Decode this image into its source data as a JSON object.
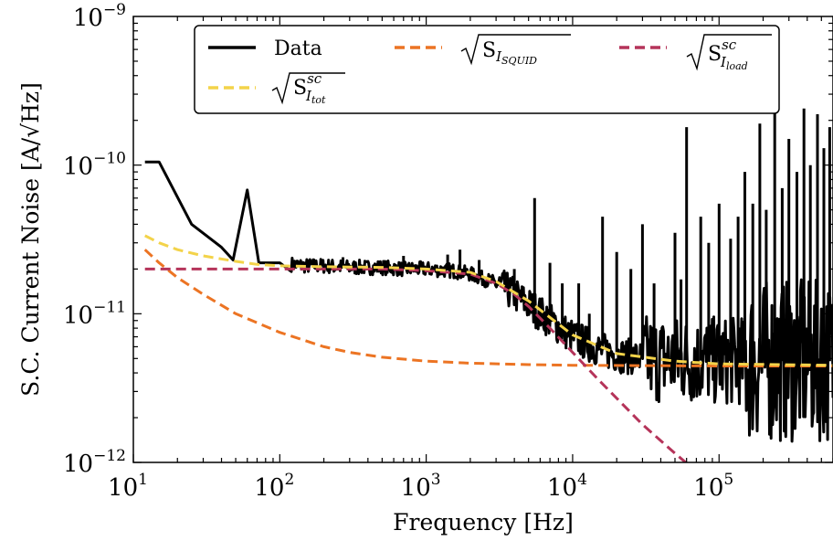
{
  "chart_data": {
    "type": "line",
    "xlabel": "Frequency [Hz]",
    "ylabel": "S.C. Current Noise [A/√Hz]",
    "xscale": "log",
    "yscale": "log",
    "xlim": [
      10,
      600000
    ],
    "ylim": [
      1e-12,
      1e-09
    ],
    "x_ticks": [
      {
        "value": 10,
        "base": "10",
        "exp": "1"
      },
      {
        "value": 100,
        "base": "10",
        "exp": "2"
      },
      {
        "value": 1000,
        "base": "10",
        "exp": "3"
      },
      {
        "value": 10000,
        "base": "10",
        "exp": "4"
      },
      {
        "value": 100000,
        "base": "10",
        "exp": "5"
      }
    ],
    "y_ticks": [
      {
        "value": 1e-12,
        "base": "10",
        "exp": "−12"
      },
      {
        "value": 1e-11,
        "base": "10",
        "exp": "−11"
      },
      {
        "value": 1e-10,
        "base": "10",
        "exp": "−10"
      },
      {
        "value": 1e-09,
        "base": "10",
        "exp": "−9"
      }
    ],
    "grid": false,
    "legend_position": "top",
    "legend": {
      "data": "Data",
      "squid": {
        "base": "S",
        "sub": "I",
        "subsub": "SQUID"
      },
      "load": {
        "base": "S",
        "sup": "sc",
        "sub": "I",
        "subsub": "load"
      },
      "tot": {
        "base": "S",
        "sup": "sc",
        "sub": "I",
        "subsub": "tot"
      }
    },
    "series": [
      {
        "key": "data",
        "color": "#000000",
        "dashed": false,
        "x": [
          12,
          15,
          25,
          40,
          48,
          60,
          72,
          100,
          150,
          200,
          300,
          500,
          700,
          1000,
          1500,
          2000,
          3000,
          4000,
          5000,
          7000,
          10000,
          15000,
          20000,
          30000,
          50000,
          100000,
          200000,
          400000,
          600000
        ],
        "y": [
          1.05e-10,
          1.05e-10,
          4e-11,
          2.8e-11,
          2.3e-11,
          6.8e-11,
          2.2e-11,
          2.2e-11,
          2.1e-11,
          2.1e-11,
          2.05e-11,
          2.05e-11,
          2e-11,
          2e-11,
          1.95e-11,
          1.85e-11,
          1.6e-11,
          1.35e-11,
          1.15e-11,
          9e-12,
          7e-12,
          5.8e-12,
          5.3e-12,
          5e-12,
          4.9e-12,
          4.8e-12,
          4.8e-12,
          4.8e-12,
          4.8e-12
        ]
      },
      {
        "key": "squid",
        "color": "#ec7423",
        "dashed": true,
        "x": [
          12,
          15,
          20,
          30,
          50,
          100,
          200,
          300,
          500,
          1000,
          2000,
          5000,
          10000,
          100000,
          600000
        ],
        "y": [
          2.7e-11,
          2.2e-11,
          1.75e-11,
          1.35e-11,
          1e-11,
          7.5e-12,
          6e-12,
          5.5e-12,
          5.1e-12,
          4.8e-12,
          4.65e-12,
          4.55e-12,
          4.5e-12,
          4.45e-12,
          4.45e-12
        ]
      },
      {
        "key": "load",
        "color": "#b5345a",
        "dashed": true,
        "x": [
          12,
          100,
          500,
          1000,
          2000,
          3000,
          4000,
          5000,
          7000,
          10000,
          15000,
          20000,
          30000,
          50000,
          67000
        ],
        "y": [
          2e-11,
          2e-11,
          2e-11,
          1.95e-11,
          1.85e-11,
          1.6e-11,
          1.35e-11,
          1.12e-11,
          8e-12,
          5.5e-12,
          3.6e-12,
          2.7e-12,
          1.8e-12,
          1.15e-12,
          9e-13
        ]
      },
      {
        "key": "tot",
        "color": "#f3d34a",
        "dashed": true,
        "x": [
          12,
          15,
          20,
          30,
          50,
          70,
          100,
          200,
          500,
          1000,
          2000,
          3000,
          5000,
          10000,
          20000,
          50000,
          100000,
          600000
        ],
        "y": [
          3.35e-11,
          3e-11,
          2.7e-11,
          2.45e-11,
          2.25e-11,
          2.15e-11,
          2.1e-11,
          2.07e-11,
          2.05e-11,
          2e-11,
          1.9e-11,
          1.65e-11,
          1.22e-11,
          7.2e-12,
          5.4e-12,
          4.8e-12,
          4.6e-12,
          4.5e-12
        ]
      }
    ],
    "spikes": [
      {
        "x": 270,
        "y": 2.4e-11
      },
      {
        "x": 700,
        "y": 2.45e-11
      },
      {
        "x": 1400,
        "y": 2.5e-11
      },
      {
        "x": 1700,
        "y": 2.7e-11
      },
      {
        "x": 2300,
        "y": 2.3e-11
      },
      {
        "x": 4000,
        "y": 2e-11
      },
      {
        "x": 5500,
        "y": 6e-11
      },
      {
        "x": 7000,
        "y": 2.2e-11
      },
      {
        "x": 8500,
        "y": 1.6e-11
      },
      {
        "x": 11000,
        "y": 1.6e-11
      },
      {
        "x": 13000,
        "y": 1e-11
      },
      {
        "x": 16000,
        "y": 4.5e-11
      },
      {
        "x": 20000,
        "y": 2.6e-11
      },
      {
        "x": 25000,
        "y": 2e-11
      },
      {
        "x": 30000,
        "y": 4e-11
      },
      {
        "x": 36000,
        "y": 1.6e-11
      },
      {
        "x": 50000,
        "y": 3.5e-11
      },
      {
        "x": 55000,
        "y": 1.7e-11
      },
      {
        "x": 60000,
        "y": 1.8e-10
      },
      {
        "x": 75000,
        "y": 4.5e-11
      },
      {
        "x": 85000,
        "y": 3e-11
      },
      {
        "x": 100000,
        "y": 5.5e-11
      },
      {
        "x": 120000,
        "y": 3.2e-11
      },
      {
        "x": 135000,
        "y": 4.5e-11
      },
      {
        "x": 150000,
        "y": 9e-11
      },
      {
        "x": 170000,
        "y": 5.5e-11
      },
      {
        "x": 190000,
        "y": 1.9e-10
      },
      {
        "x": 210000,
        "y": 5e-11
      },
      {
        "x": 240000,
        "y": 2.5e-10
      },
      {
        "x": 270000,
        "y": 7e-11
      },
      {
        "x": 300000,
        "y": 1.5e-10
      },
      {
        "x": 340000,
        "y": 9e-11
      },
      {
        "x": 380000,
        "y": 2.4e-10
      },
      {
        "x": 420000,
        "y": 1e-10
      },
      {
        "x": 470000,
        "y": 2.2e-10
      },
      {
        "x": 520000,
        "y": 1.3e-10
      },
      {
        "x": 570000,
        "y": 1.8e-10
      }
    ]
  }
}
